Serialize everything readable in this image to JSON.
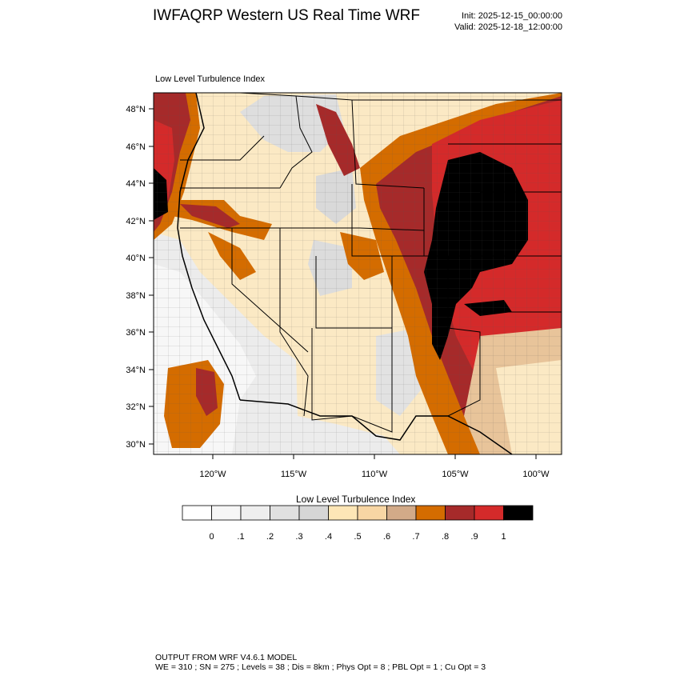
{
  "header": {
    "title": "IWFAQRP Western US Real Time WRF",
    "init_line": "Init: 2025-12-15_00:00:00",
    "valid_line": "Valid: 2025-12-18_12:00:00"
  },
  "map": {
    "subtitle": "Low Level Turbulence Index",
    "lat_labels": [
      "48°N",
      "46°N",
      "44°N",
      "42°N",
      "40°N",
      "38°N",
      "36°N",
      "34°N",
      "32°N",
      "30°N"
    ],
    "lon_labels": [
      "120°W",
      "115°W",
      "110°W",
      "105°W",
      "100°W"
    ]
  },
  "colorbar": {
    "title": "Low Level Turbulence Index",
    "labels": [
      "0",
      ".1",
      ".2",
      ".3",
      ".4",
      ".5",
      ".6",
      ".7",
      ".8",
      ".9",
      "1"
    ],
    "colors": [
      "#ffffff",
      "#f6f6f6",
      "#eeeeee",
      "#e0e0e0",
      "#d6d6d6",
      "#fde6b6",
      "#f8d6a4",
      "#d2aa88",
      "#d46c00",
      "#a62a2a",
      "#d42a2a",
      "#000000"
    ]
  },
  "footer": {
    "line1": "OUTPUT FROM WRF V4.6.1 MODEL",
    "line2": "WE = 310 ; SN = 275 ; Levels = 38 ; Dis = 8km ; Phys Opt = 8 ; PBL Opt = 1 ; Cu Opt = 3"
  }
}
